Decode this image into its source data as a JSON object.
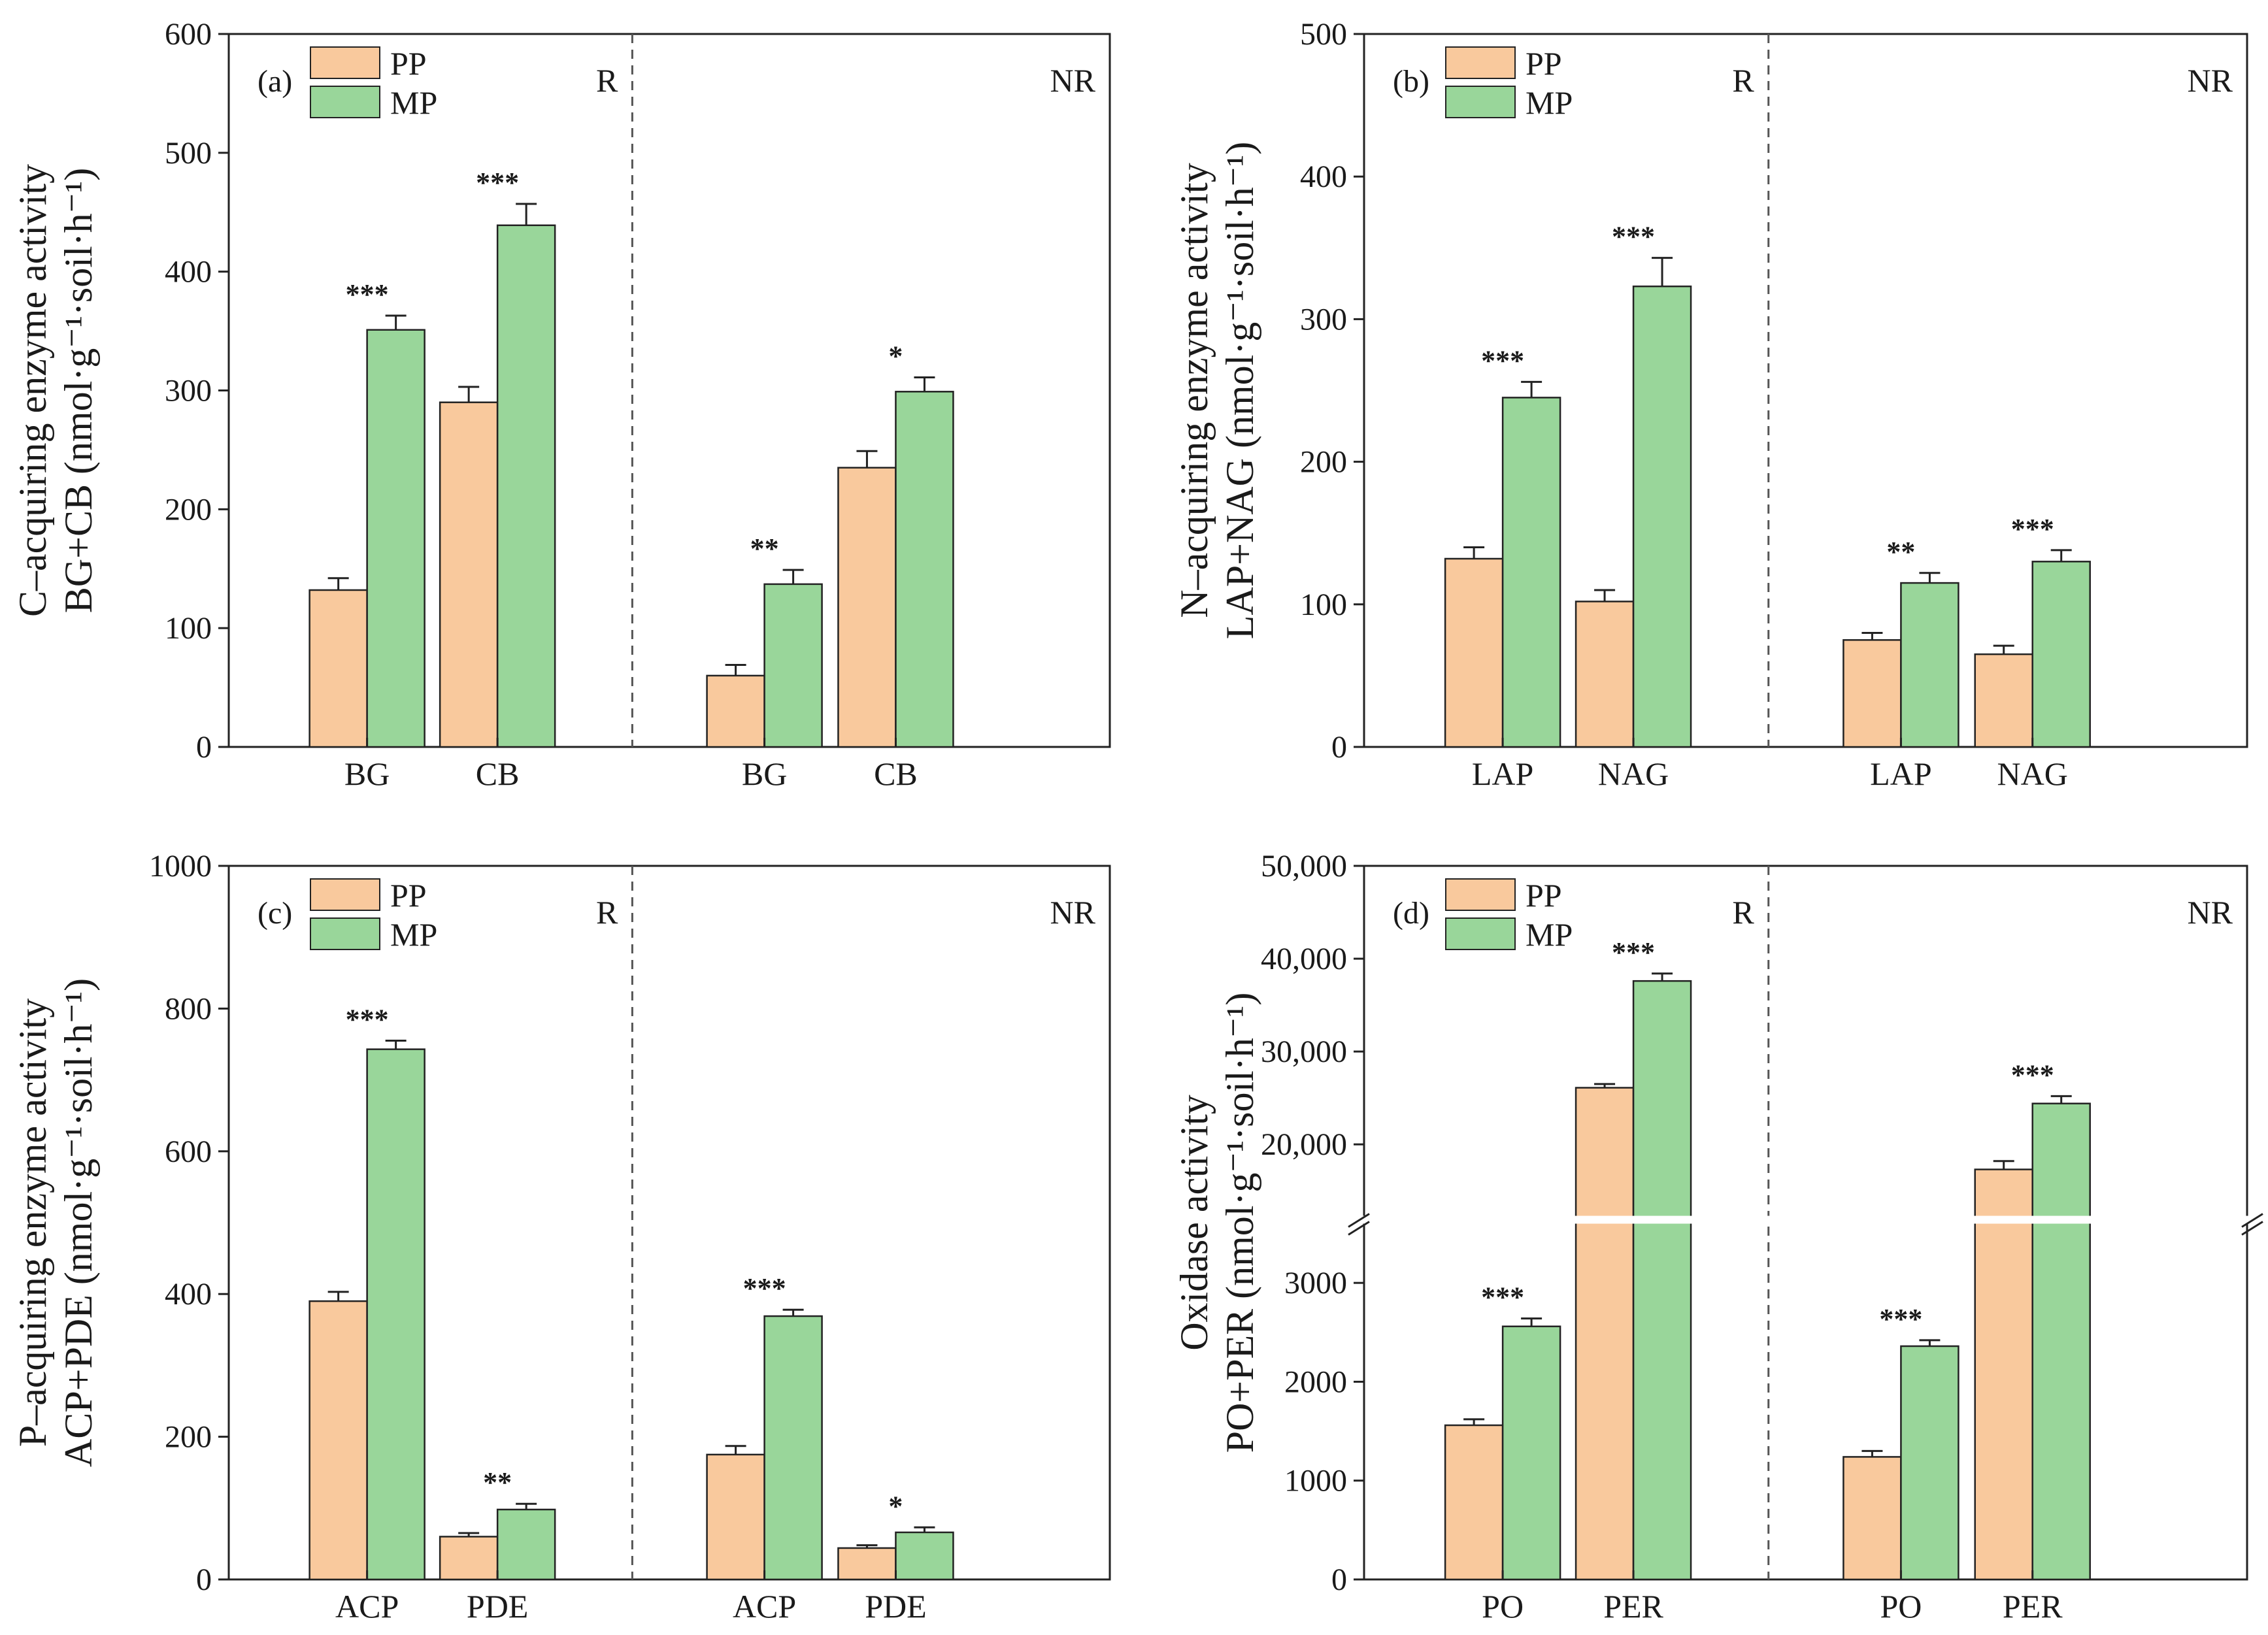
{
  "legend": {
    "pp": "PP",
    "mp": "MP"
  },
  "colors": {
    "pp": "#F9C99D",
    "mp": "#99D69A",
    "axis": "#222222",
    "break": "#ffffff"
  },
  "chart_data": [
    {
      "id": "a",
      "type": "bar",
      "panel_label": "(a)",
      "ylabel_lines": [
        "C–acquiring enzyme activity",
        "BG+CB (nmol·g⁻¹·soil·h⁻¹)"
      ],
      "ylim": [
        0,
        600
      ],
      "yticks": [
        0,
        100,
        200,
        300,
        400,
        500,
        600
      ],
      "ytick_labels": [
        "0",
        "100",
        "200",
        "300",
        "400",
        "500",
        "600"
      ],
      "regions": [
        {
          "label": "R",
          "categories": [
            "BG",
            "CB"
          ],
          "PP": [
            132,
            290
          ],
          "PP_err": [
            10,
            13
          ],
          "MP": [
            351,
            439
          ],
          "MP_err": [
            12,
            18
          ],
          "sig": [
            "***",
            "***"
          ]
        },
        {
          "label": "NR",
          "categories": [
            "BG",
            "CB"
          ],
          "PP": [
            60,
            235
          ],
          "PP_err": [
            9,
            14
          ],
          "MP": [
            137,
            299
          ],
          "MP_err": [
            12,
            12
          ],
          "sig": [
            "**",
            "*"
          ]
        }
      ]
    },
    {
      "id": "b",
      "type": "bar",
      "panel_label": "(b)",
      "ylabel_lines": [
        "N–acquiring enzyme activity",
        "LAP+NAG (nmol·g⁻¹·soil·h⁻¹)"
      ],
      "ylim": [
        0,
        500
      ],
      "yticks": [
        0,
        100,
        200,
        300,
        400,
        500
      ],
      "ytick_labels": [
        "0",
        "100",
        "200",
        "300",
        "400",
        "500"
      ],
      "regions": [
        {
          "label": "R",
          "categories": [
            "LAP",
            "NAG"
          ],
          "PP": [
            132,
            102
          ],
          "PP_err": [
            8,
            8
          ],
          "MP": [
            245,
            323
          ],
          "MP_err": [
            11,
            20
          ],
          "sig": [
            "***",
            "***"
          ]
        },
        {
          "label": "NR",
          "categories": [
            "LAP",
            "NAG"
          ],
          "PP": [
            75,
            65
          ],
          "PP_err": [
            5,
            6
          ],
          "MP": [
            115,
            130
          ],
          "MP_err": [
            7,
            8
          ],
          "sig": [
            "**",
            "***"
          ]
        }
      ]
    },
    {
      "id": "c",
      "type": "bar",
      "panel_label": "(c)",
      "ylabel_lines": [
        "P–acquiring enzyme activity",
        "ACP+PDE (nmol·g⁻¹·soil·h⁻¹)"
      ],
      "ylim": [
        0,
        1000
      ],
      "yticks": [
        0,
        200,
        400,
        600,
        800,
        1000
      ],
      "ytick_labels": [
        "0",
        "200",
        "400",
        "600",
        "800",
        "1000"
      ],
      "regions": [
        {
          "label": "R",
          "categories": [
            "ACP",
            "PDE"
          ],
          "PP": [
            390,
            60
          ],
          "PP_err": [
            13,
            5
          ],
          "MP": [
            743,
            98
          ],
          "MP_err": [
            12,
            8
          ],
          "sig": [
            "***",
            "**"
          ]
        },
        {
          "label": "NR",
          "categories": [
            "ACP",
            "PDE"
          ],
          "PP": [
            175,
            44
          ],
          "PP_err": [
            12,
            4
          ],
          "MP": [
            369,
            66
          ],
          "MP_err": [
            9,
            7
          ],
          "sig": [
            "***",
            "*"
          ]
        }
      ]
    },
    {
      "id": "d",
      "type": "bar",
      "panel_label": "(d)",
      "ylabel_lines": [
        "Oxidase activity",
        "PO+PER (nmol·g⁻¹·soil·h⁻¹)"
      ],
      "broken_axis": {
        "lower": {
          "ylim": [
            0,
            3500
          ],
          "yticks": [
            0,
            1000,
            2000,
            3000
          ],
          "ytick_labels": [
            "0",
            "1000",
            "2000",
            "3000"
          ]
        },
        "upper": {
          "ylim": [
            13500,
            50000
          ],
          "yticks": [
            20000,
            30000,
            40000,
            50000
          ],
          "ytick_labels": [
            "20,000",
            "30,000",
            "40,000",
            "50,000"
          ]
        }
      },
      "regions": [
        {
          "label": "R",
          "categories": [
            "PO",
            "PER"
          ],
          "PP": [
            1560,
            26100
          ],
          "PP_err": [
            60,
            400
          ],
          "MP": [
            2560,
            37600
          ],
          "MP_err": [
            80,
            800
          ],
          "sig": [
            "***",
            "***"
          ]
        },
        {
          "label": "NR",
          "categories": [
            "PO",
            "PER"
          ],
          "PP": [
            1240,
            17300
          ],
          "PP_err": [
            60,
            900
          ],
          "MP": [
            2360,
            24400
          ],
          "MP_err": [
            60,
            800
          ],
          "sig": [
            "***",
            "***"
          ]
        }
      ]
    }
  ]
}
